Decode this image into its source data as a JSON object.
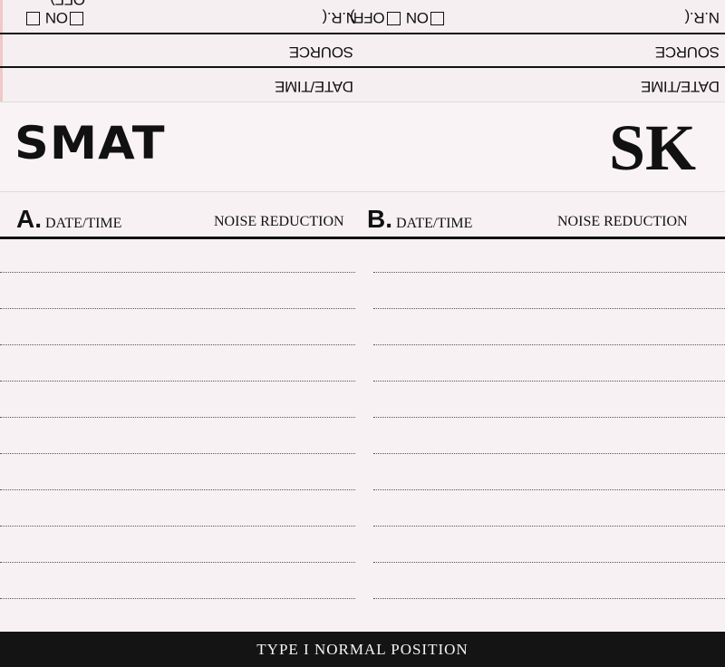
{
  "top_band": {
    "date_time_label": "DATE/TIME",
    "source_label": "SOURCE",
    "nr_label": "N.R.(",
    "on_label": "ON",
    "off_label": "OFF)"
  },
  "brand": {
    "name": "SMAT",
    "model": "SK"
  },
  "side_a": {
    "letter": "A.",
    "date_time": "DATE/TIME",
    "noise_reduction": "NOISE REDUCTION"
  },
  "side_b": {
    "letter": "B.",
    "date_time": "DATE/TIME",
    "noise_reduction": "NOISE REDUCTION"
  },
  "footer": {
    "tape_type": "TYPE I NORMAL POSITION"
  }
}
